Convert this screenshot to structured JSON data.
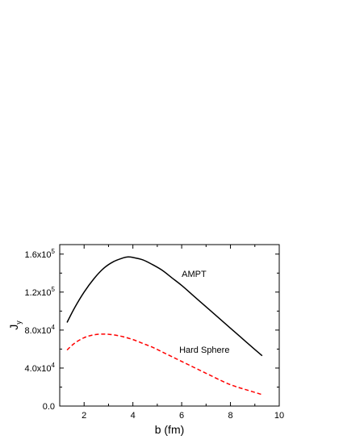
{
  "chart_data": {
    "type": "line",
    "xlabel": "b (fm)",
    "ylabel": "J",
    "ylabel_subscript": "y",
    "xlim": [
      1,
      10
    ],
    "ylim": [
      0,
      170000
    ],
    "x_ticks": [
      2,
      4,
      6,
      8,
      10
    ],
    "x_tick_labels": [
      "2",
      "4",
      "6",
      "8",
      "10"
    ],
    "y_ticks": [
      {
        "value": 0,
        "mantissa": "0.0",
        "exp": ""
      },
      {
        "value": 40000,
        "mantissa": "4.0x10",
        "exp": "4"
      },
      {
        "value": 80000,
        "mantissa": "8.0x10",
        "exp": "4"
      },
      {
        "value": 120000,
        "mantissa": "1.2x10",
        "exp": "5"
      },
      {
        "value": 160000,
        "mantissa": "1.6x10",
        "exp": "5"
      }
    ],
    "grid": false,
    "series": [
      {
        "name": "AMPT",
        "color": "#000000",
        "dash": "solid",
        "x": [
          1.3,
          1.6,
          2.0,
          2.4,
          2.8,
          3.2,
          3.6,
          3.8,
          4.0,
          4.4,
          4.8,
          5.2,
          5.6,
          6.0,
          6.4,
          6.8,
          7.2,
          7.6,
          8.0,
          8.4,
          8.8,
          9.3
        ],
        "y": [
          88000,
          103000,
          120000,
          134000,
          145000,
          152000,
          156000,
          157000,
          156500,
          154000,
          149000,
          143000,
          135000,
          127000,
          118000,
          109000,
          100000,
          91000,
          82000,
          73000,
          64000,
          53000
        ]
      },
      {
        "name": "Hard Sphere",
        "color": "#ff0000",
        "dash": "dashed",
        "x": [
          1.3,
          1.6,
          2.0,
          2.4,
          2.8,
          3.2,
          3.6,
          4.0,
          4.4,
          4.8,
          5.2,
          5.6,
          6.0,
          6.4,
          6.8,
          7.2,
          7.6,
          8.0,
          8.4,
          8.8,
          9.3
        ],
        "y": [
          59000,
          66000,
          72000,
          75000,
          75800,
          75000,
          73000,
          70000,
          66000,
          62000,
          57000,
          52000,
          47000,
          42000,
          37000,
          32000,
          27000,
          22500,
          19000,
          16000,
          12000
        ]
      }
    ],
    "annotations": [
      {
        "text": "AMPT",
        "x": 6.0,
        "y": 136000
      },
      {
        "text": "Hard Sphere",
        "x": 5.9,
        "y": 56000
      }
    ]
  }
}
